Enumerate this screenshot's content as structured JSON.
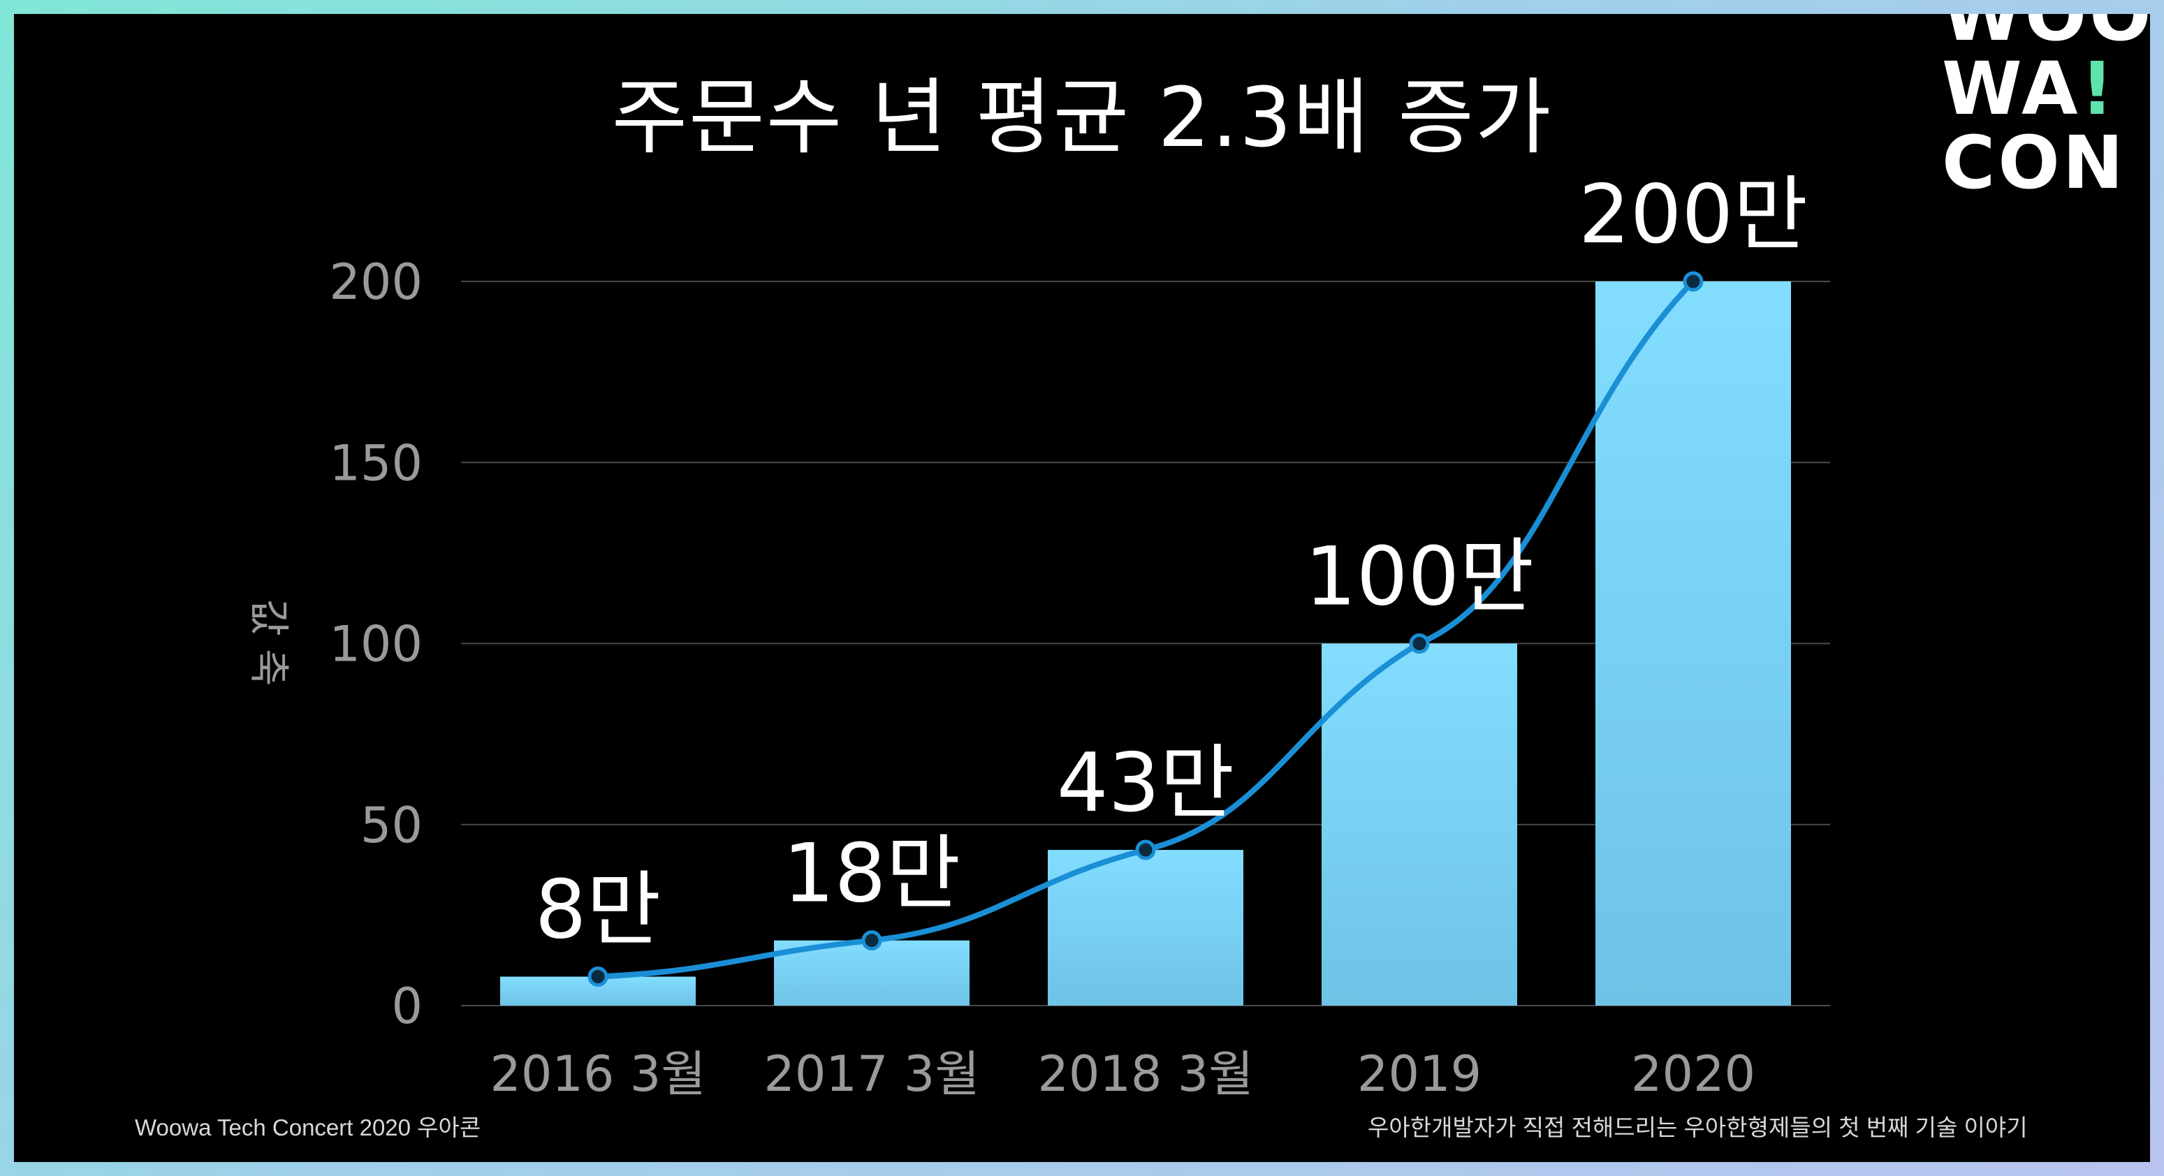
{
  "slide": {
    "title": "주문수 년 평균 2.3배 증가",
    "logo": {
      "line1": "WOO",
      "line2_text": "WA",
      "line2_bang": "!",
      "line3": "CON"
    },
    "footer_left": "Woowa Tech Concert  2020 우아콘",
    "footer_right": "우아한개발자가 직접 전해드리는 우아한형제들의 첫 번째 기술 이야기"
  },
  "colors": {
    "background": "#000000",
    "bar_top": "#82ddff",
    "bar_bottom": "#6ec3e6",
    "line": "#1a8fd6",
    "grid": "#4a4a4a",
    "axis_text": "#9a9a9a",
    "label_text": "#ffffff"
  },
  "chart_data": {
    "type": "bar",
    "categories": [
      "2016 3월",
      "2017 3월",
      "2018 3월",
      "2019",
      "2020"
    ],
    "values": [
      8,
      18,
      43,
      100,
      200
    ],
    "data_labels": [
      "8만",
      "18만",
      "43만",
      "100만",
      "200만"
    ],
    "overlay_line": true,
    "ylabel": "값 축",
    "ylim": [
      0,
      200
    ],
    "yticks": [
      0,
      50,
      100,
      150,
      200
    ],
    "grid": true
  }
}
